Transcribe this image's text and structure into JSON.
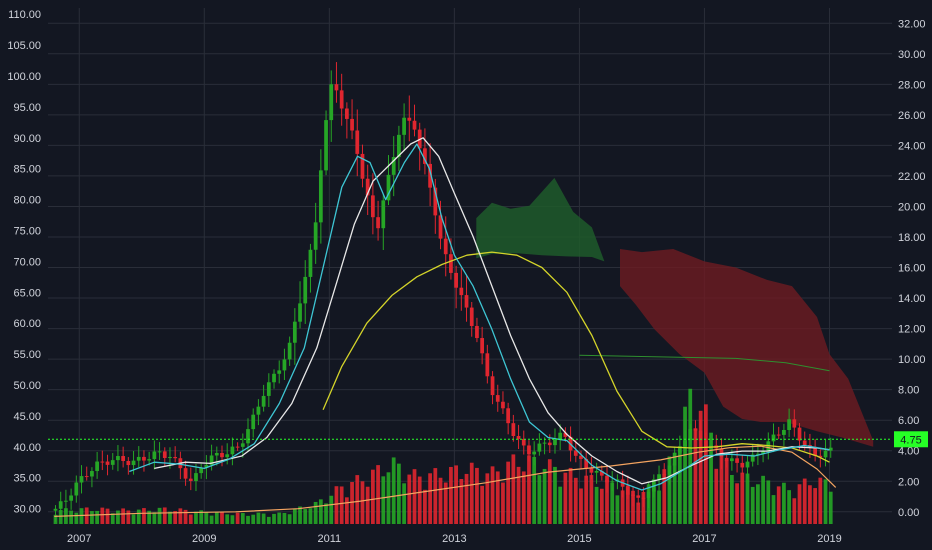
{
  "chart_data": {
    "type": "candlestick",
    "title": "",
    "colors": {
      "background": "#131722",
      "grid": "#2a2e39",
      "up": "#26a626",
      "down": "#e0262f",
      "ema_fast": "#3ec6d4",
      "ema_slow": "#e8e8e8",
      "ma_long": "#d4d42a",
      "ma_flat": "#2f8f2f",
      "vol_ma": "#f4a460",
      "cloud_green": "#1f5a2a",
      "cloud_red": "#6e1b22",
      "price_line": "#26ff26",
      "badge": "#26ff26"
    },
    "x_axis": {
      "range": [
        2006.5,
        2020.0
      ],
      "ticks": [
        "2007",
        "2009",
        "2011",
        "2013",
        "2015",
        "2017",
        "2019"
      ],
      "tick_values": [
        2007,
        2009,
        2011,
        2013,
        2015,
        2017,
        2019
      ]
    },
    "left_axis": {
      "range": [
        27.5,
        111.0
      ],
      "ticks": [
        "30.00",
        "35.00",
        "40.00",
        "45.00",
        "50.00",
        "55.00",
        "60.00",
        "65.00",
        "70.00",
        "75.00",
        "80.00",
        "85.00",
        "90.00",
        "95.00",
        "100.00",
        "105.00",
        "110.00"
      ]
    },
    "right_axis": {
      "range": [
        -0.8,
        33.0
      ],
      "ticks": [
        "0.00",
        "2.00",
        "4.00",
        "6.00",
        "8.00",
        "10.00",
        "12.00",
        "14.00",
        "16.00",
        "18.00",
        "20.00",
        "22.00",
        "24.00",
        "26.00",
        "28.00",
        "30.00",
        "32.00"
      ],
      "last_value": "4.75",
      "last_value_num": 4.75
    },
    "price_path": [
      [
        2006.6,
        29.5
      ],
      [
        2006.8,
        31
      ],
      [
        2007.0,
        34
      ],
      [
        2007.3,
        37
      ],
      [
        2007.6,
        38
      ],
      [
        2007.9,
        37.5
      ],
      [
        2008.1,
        38.2
      ],
      [
        2008.3,
        39
      ],
      [
        2008.5,
        38.5
      ],
      [
        2008.7,
        36
      ],
      [
        2008.85,
        34
      ],
      [
        2009.0,
        37
      ],
      [
        2009.2,
        38.5
      ],
      [
        2009.4,
        39
      ],
      [
        2009.6,
        40
      ],
      [
        2009.8,
        44
      ],
      [
        2010.0,
        49
      ],
      [
        2010.2,
        52
      ],
      [
        2010.4,
        56
      ],
      [
        2010.6,
        65
      ],
      [
        2010.8,
        74
      ],
      [
        2010.95,
        90
      ],
      [
        2011.1,
        100
      ],
      [
        2011.3,
        93
      ],
      [
        2011.45,
        90
      ],
      [
        2011.6,
        82
      ],
      [
        2011.8,
        75
      ],
      [
        2012.0,
        84
      ],
      [
        2012.2,
        93
      ],
      [
        2012.4,
        92
      ],
      [
        2012.55,
        86
      ],
      [
        2012.7,
        80
      ],
      [
        2012.85,
        72
      ],
      [
        2013.0,
        68
      ],
      [
        2013.2,
        63
      ],
      [
        2013.4,
        58
      ],
      [
        2013.6,
        50
      ],
      [
        2013.8,
        46
      ],
      [
        2014.0,
        42
      ],
      [
        2014.2,
        39
      ],
      [
        2014.4,
        40
      ],
      [
        2014.6,
        41
      ],
      [
        2014.8,
        42
      ],
      [
        2015.0,
        38
      ],
      [
        2015.2,
        36.5
      ],
      [
        2015.4,
        35
      ],
      [
        2015.6,
        34.5
      ],
      [
        2015.8,
        33
      ],
      [
        2016.0,
        31
      ],
      [
        2016.2,
        34
      ],
      [
        2016.4,
        36
      ],
      [
        2016.6,
        39
      ],
      [
        2016.8,
        43
      ],
      [
        2017.0,
        41
      ],
      [
        2017.2,
        39.5
      ],
      [
        2017.4,
        38
      ],
      [
        2017.6,
        37
      ],
      [
        2017.8,
        38
      ],
      [
        2018.0,
        40
      ],
      [
        2018.2,
        42
      ],
      [
        2018.4,
        44
      ],
      [
        2018.6,
        41
      ],
      [
        2018.8,
        38.5
      ],
      [
        2019.0,
        39.3
      ]
    ],
    "ema_fast": [
      [
        2007.8,
        36
      ],
      [
        2008.2,
        37.5
      ],
      [
        2008.6,
        37.2
      ],
      [
        2009.0,
        36.5
      ],
      [
        2009.4,
        38
      ],
      [
        2009.8,
        40.5
      ],
      [
        2010.2,
        47
      ],
      [
        2010.6,
        56
      ],
      [
        2010.9,
        69
      ],
      [
        2011.2,
        82
      ],
      [
        2011.45,
        87
      ],
      [
        2011.65,
        86
      ],
      [
        2011.9,
        80
      ],
      [
        2012.2,
        86
      ],
      [
        2012.4,
        89
      ],
      [
        2012.6,
        85
      ],
      [
        2012.8,
        77
      ],
      [
        2013.0,
        71
      ],
      [
        2013.3,
        66
      ],
      [
        2013.6,
        59
      ],
      [
        2013.9,
        51
      ],
      [
        2014.2,
        44
      ],
      [
        2014.5,
        41.5
      ],
      [
        2014.8,
        41
      ],
      [
        2015.2,
        37
      ],
      [
        2015.6,
        34.5
      ],
      [
        2016.0,
        33
      ],
      [
        2016.3,
        34
      ],
      [
        2016.7,
        36.5
      ],
      [
        2017.0,
        38.5
      ],
      [
        2017.4,
        38.8
      ],
      [
        2017.8,
        38.5
      ],
      [
        2018.2,
        39.5
      ],
      [
        2018.6,
        40.2
      ],
      [
        2019.0,
        39.5
      ]
    ],
    "ema_slow": [
      [
        2008.2,
        36.5
      ],
      [
        2008.7,
        37.5
      ],
      [
        2009.1,
        37.3
      ],
      [
        2009.6,
        38.5
      ],
      [
        2010.0,
        41.5
      ],
      [
        2010.4,
        47
      ],
      [
        2010.8,
        56
      ],
      [
        2011.1,
        66
      ],
      [
        2011.4,
        76
      ],
      [
        2011.7,
        83
      ],
      [
        2012.0,
        86
      ],
      [
        2012.3,
        89
      ],
      [
        2012.5,
        90
      ],
      [
        2012.75,
        87
      ],
      [
        2013.0,
        81
      ],
      [
        2013.3,
        74
      ],
      [
        2013.6,
        66
      ],
      [
        2013.9,
        58
      ],
      [
        2014.2,
        51
      ],
      [
        2014.5,
        45.5
      ],
      [
        2014.8,
        42
      ],
      [
        2015.2,
        38.5
      ],
      [
        2015.6,
        36
      ],
      [
        2016.0,
        34
      ],
      [
        2016.4,
        35
      ],
      [
        2016.8,
        37
      ],
      [
        2017.2,
        38.8
      ],
      [
        2017.6,
        39.3
      ],
      [
        2018.0,
        39.3
      ],
      [
        2018.4,
        40
      ],
      [
        2018.8,
        39.8
      ],
      [
        2019.0,
        39.5
      ]
    ],
    "ma_long": [
      [
        2010.9,
        46
      ],
      [
        2011.2,
        53
      ],
      [
        2011.6,
        60
      ],
      [
        2012.0,
        64.5
      ],
      [
        2012.4,
        67.5
      ],
      [
        2012.8,
        69.5
      ],
      [
        2013.2,
        71
      ],
      [
        2013.6,
        71.5
      ],
      [
        2014.0,
        71
      ],
      [
        2014.4,
        69
      ],
      [
        2014.8,
        65
      ],
      [
        2015.2,
        58
      ],
      [
        2015.6,
        49
      ],
      [
        2016.0,
        42.5
      ],
      [
        2016.4,
        40
      ],
      [
        2016.8,
        39.8
      ],
      [
        2017.2,
        40
      ],
      [
        2017.6,
        40.5
      ],
      [
        2018.0,
        40.2
      ],
      [
        2018.4,
        39.8
      ],
      [
        2018.8,
        38.5
      ],
      [
        2019.0,
        37.5
      ]
    ],
    "ma_flat": [
      [
        2015.0,
        54.8
      ],
      [
        2016.5,
        54.5
      ],
      [
        2017.5,
        54.3
      ],
      [
        2018.3,
        53.6
      ],
      [
        2019.0,
        52.3
      ]
    ],
    "cloud_green": {
      "upper": [
        [
          2013.35,
          77
        ],
        [
          2013.6,
          79.5
        ],
        [
          2013.9,
          78.5
        ],
        [
          2014.2,
          79
        ],
        [
          2014.6,
          83.5
        ],
        [
          2014.9,
          78
        ],
        [
          2015.2,
          75.5
        ],
        [
          2015.4,
          70
        ]
      ],
      "lower": [
        [
          2015.4,
          70
        ],
        [
          2015.2,
          70.7
        ],
        [
          2014.8,
          70.8
        ],
        [
          2014.4,
          71
        ],
        [
          2014.0,
          71.3
        ],
        [
          2013.6,
          71.2
        ],
        [
          2013.35,
          70.5
        ]
      ]
    },
    "cloud_red": {
      "upper": [
        [
          2015.65,
          72
        ],
        [
          2016.0,
          71.5
        ],
        [
          2016.5,
          72
        ],
        [
          2017.0,
          70
        ],
        [
          2017.5,
          69
        ],
        [
          2018.0,
          67
        ],
        [
          2018.4,
          66
        ],
        [
          2018.8,
          61
        ],
        [
          2019.0,
          55
        ],
        [
          2019.3,
          51
        ],
        [
          2019.7,
          41
        ]
      ],
      "lower": [
        [
          2019.7,
          40
        ],
        [
          2019.2,
          41.5
        ],
        [
          2018.8,
          42.5
        ],
        [
          2018.3,
          44
        ],
        [
          2017.9,
          44
        ],
        [
          2017.6,
          44.5
        ],
        [
          2017.3,
          46.5
        ],
        [
          2017.0,
          52
        ],
        [
          2016.6,
          55
        ],
        [
          2016.2,
          59
        ],
        [
          2015.9,
          63
        ],
        [
          2015.65,
          66
        ]
      ]
    },
    "volume_path": [
      [
        2006.6,
        0.8
      ],
      [
        2007.2,
        0.9
      ],
      [
        2007.8,
        0.8
      ],
      [
        2008.4,
        0.9
      ],
      [
        2009.0,
        0.7
      ],
      [
        2009.6,
        0.6
      ],
      [
        2010.2,
        0.6
      ],
      [
        2010.8,
        1.2
      ],
      [
        2011.2,
        2.2
      ],
      [
        2011.6,
        2.8
      ],
      [
        2012.0,
        3.6
      ],
      [
        2012.4,
        2.8
      ],
      [
        2012.8,
        3.0
      ],
      [
        2013.2,
        3.3
      ],
      [
        2013.6,
        3.0
      ],
      [
        2014.0,
        3.8
      ],
      [
        2014.4,
        3.6
      ],
      [
        2014.8,
        3.0
      ],
      [
        2015.2,
        2.6
      ],
      [
        2015.6,
        2.2
      ],
      [
        2016.0,
        1.8
      ],
      [
        2016.3,
        2.6
      ],
      [
        2016.6,
        4.8
      ],
      [
        2016.8,
        8.0
      ],
      [
        2017.0,
        6.5
      ],
      [
        2017.3,
        3.5
      ],
      [
        2017.6,
        2.8
      ],
      [
        2018.0,
        2.5
      ],
      [
        2018.4,
        2.0
      ],
      [
        2018.7,
        2.6
      ],
      [
        2019.0,
        2.4
      ]
    ],
    "vol_ma": [
      [
        2006.6,
        -0.3
      ],
      [
        2008.0,
        -0.1
      ],
      [
        2009.5,
        0.0
      ],
      [
        2010.5,
        0.2
      ],
      [
        2011.5,
        0.7
      ],
      [
        2012.5,
        1.3
      ],
      [
        2013.5,
        1.9
      ],
      [
        2014.5,
        2.6
      ],
      [
        2015.5,
        3.0
      ],
      [
        2016.3,
        3.4
      ],
      [
        2016.9,
        3.9
      ],
      [
        2017.4,
        4.2
      ],
      [
        2017.9,
        4.3
      ],
      [
        2018.4,
        3.9
      ],
      [
        2018.8,
        2.8
      ],
      [
        2019.1,
        1.6
      ]
    ],
    "last_price_level": 4.75
  }
}
